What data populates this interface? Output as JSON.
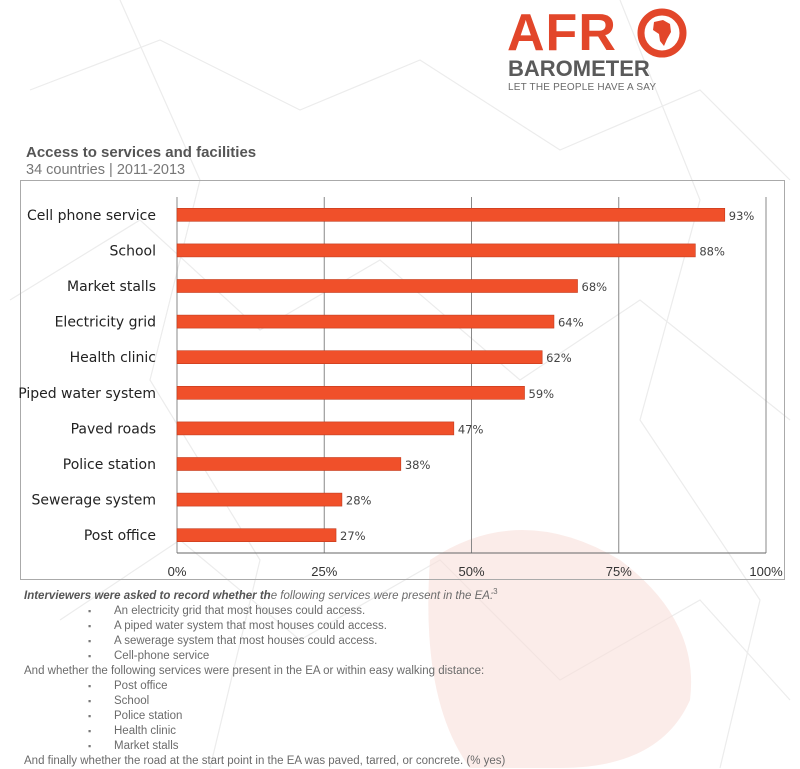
{
  "logo": {
    "wordmark_top": "AFR",
    "wordmark_bottom": "BAROMETER",
    "tagline": "LET THE PEOPLE HAVE A SAY",
    "colors": {
      "red": "#e2462a",
      "grey": "#5a5a5a"
    }
  },
  "chart_data": {
    "type": "bar",
    "orientation": "horizontal",
    "title": "Access to services and facilities",
    "subtitle": "34 countries | 2011-2013",
    "categories": [
      "Cell phone service",
      "School",
      "Market stalls",
      "Electricity grid",
      "Health clinic",
      "Piped water system",
      "Paved roads",
      "Police station",
      "Sewerage system",
      "Post office"
    ],
    "values": [
      93,
      88,
      68,
      64,
      62,
      59,
      47,
      38,
      28,
      27
    ],
    "value_labels": [
      "93%",
      "88%",
      "68%",
      "64%",
      "62%",
      "59%",
      "47%",
      "38%",
      "28%",
      "27%"
    ],
    "xlim": [
      0,
      100
    ],
    "xticks": [
      0,
      25,
      50,
      75,
      100
    ],
    "xtick_labels": [
      "0%",
      "25%",
      "50%",
      "75%",
      "100%"
    ],
    "xlabel": "",
    "ylabel": "",
    "grid": true,
    "bar_color": "#f0502a"
  },
  "notes": {
    "intro_bold": "Interviewers were asked to record whether th",
    "intro_rest": "e following services were present in the EA:",
    "footnote_mark": "3",
    "list1": [
      "An electricity grid that most houses could access.",
      "A piped water system that most houses could access.",
      "A sewerage system that most houses could access.",
      "Cell-phone service"
    ],
    "middle": "And whether the following services were present in the EA or within easy walking distance:",
    "list2": [
      "Post office",
      "School",
      "Police station",
      "Health clinic",
      "Market stalls"
    ],
    "closing": "And finally whether the road at the start point in the EA was paved, tarred, or concrete. (% yes)"
  }
}
